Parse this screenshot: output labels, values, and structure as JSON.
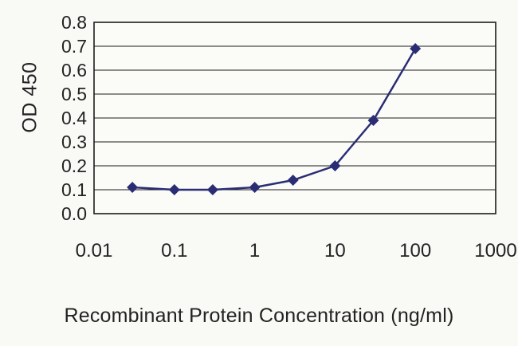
{
  "chart_data": {
    "type": "line",
    "title": "",
    "xlabel": "Recombinant Protein Concentration (ng/ml)",
    "ylabel": "OD 450",
    "x_scale": "log",
    "xlim": [
      0.01,
      1000
    ],
    "ylim": [
      0.0,
      0.8
    ],
    "x_ticks": [
      0.01,
      0.1,
      1,
      10,
      100,
      1000
    ],
    "x_tick_labels": [
      "0.01",
      "0.1",
      "1",
      "10",
      "100",
      "1000"
    ],
    "y_ticks": [
      0.0,
      0.1,
      0.2,
      0.3,
      0.4,
      0.5,
      0.6,
      0.7,
      0.8
    ],
    "y_tick_labels": [
      "0.0",
      "0.1",
      "0.2",
      "0.3",
      "0.4",
      "0.5",
      "0.6",
      "0.7",
      "0.8"
    ],
    "grid": "horizontal",
    "legend": "none",
    "series": [
      {
        "name": "OD450",
        "marker": "diamond",
        "x": [
          0.03,
          0.1,
          0.3,
          1,
          3,
          10,
          30,
          100
        ],
        "y": [
          0.11,
          0.1,
          0.1,
          0.11,
          0.14,
          0.2,
          0.39,
          0.69
        ]
      }
    ],
    "colors": {
      "line": "#2a2d74",
      "marker": "#2a2d74",
      "grid": "#1c1c1c",
      "axis": "#1c1c1c",
      "text": "#232323",
      "plot_background": "#fbfbf8",
      "figure_background": "#f9f9f6"
    }
  }
}
